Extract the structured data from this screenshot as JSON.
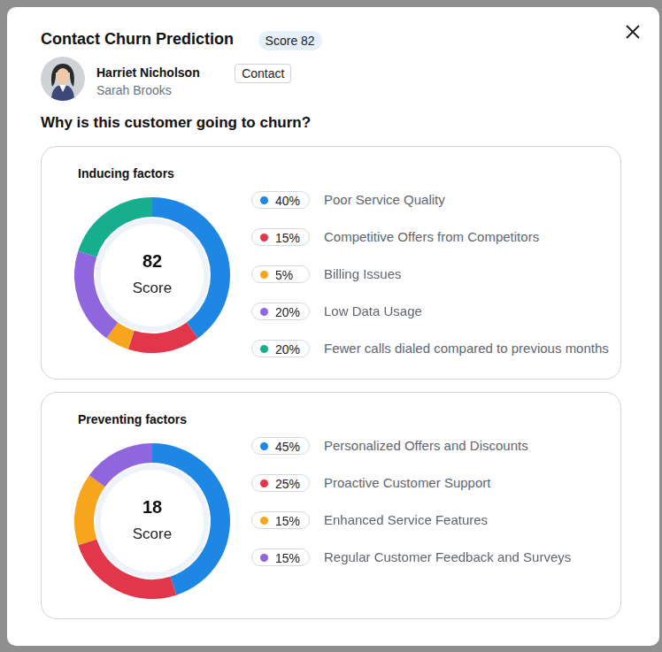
{
  "header": {
    "title": "Contact Churn Prediction",
    "badge": "Score 82",
    "name": "Harriet Nicholson",
    "tag": "Contact",
    "owner": "Sarah Brooks",
    "question": "Why is this customer going to churn?"
  },
  "chart_data": [
    {
      "type": "doughnut",
      "title": "Inducing factors",
      "center_value": 82,
      "center_label": "Score",
      "categories": [
        "Poor Service Quality",
        "Competitive Offers from Competitors",
        "Billing Issues",
        "Low Data Usage",
        "Fewer calls dialed compared to previous months"
      ],
      "values": [
        40,
        15,
        5,
        20,
        20
      ],
      "value_labels": [
        "40%",
        "15%",
        "5%",
        "20%",
        "20%"
      ],
      "colors": [
        "#1e86e3",
        "#e2374b",
        "#f6a51c",
        "#9066de",
        "#16ae8c"
      ]
    },
    {
      "type": "doughnut",
      "title": "Preventing factors",
      "center_value": 18,
      "center_label": "Score",
      "categories": [
        "Personalized Offers and Discounts",
        "Proactive Customer Support",
        "Enhanced Service Features",
        "Regular Customer Feedback and Surveys"
      ],
      "values": [
        45,
        25,
        15,
        15
      ],
      "value_labels": [
        "45%",
        "25%",
        "15%",
        "15%"
      ],
      "colors": [
        "#1e86e3",
        "#e2374b",
        "#f6a51c",
        "#9066de"
      ]
    }
  ]
}
